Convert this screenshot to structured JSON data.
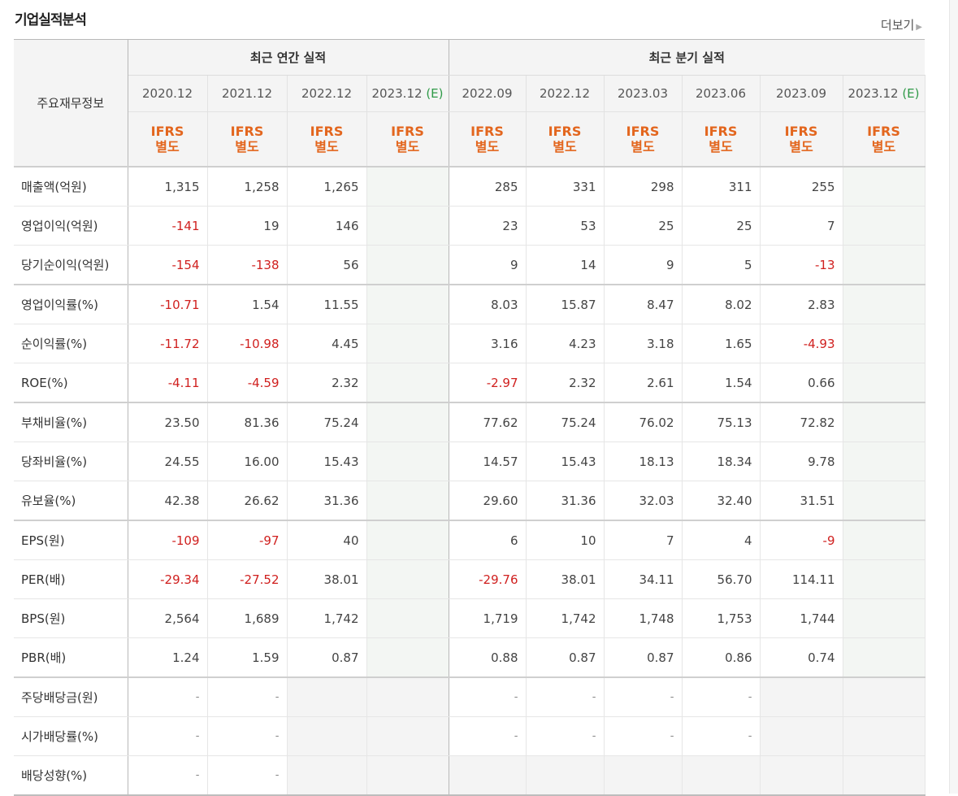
{
  "header": {
    "title": "기업실적분석",
    "more_label": "더보기"
  },
  "table": {
    "label_header": "주요재무정보",
    "group_annual": "최근 연간 실적",
    "group_quarter": "최근 분기 실적",
    "periods": [
      "2020.12",
      "2021.12",
      "2022.12",
      "2023.12",
      "2022.09",
      "2022.12",
      "2023.03",
      "2023.06",
      "2023.09",
      "2023.12"
    ],
    "estimate_mark": "(E)",
    "basis_top": "IFRS",
    "basis_bottom": "별도",
    "rows": [
      {
        "label": "매출액(억원)",
        "values": [
          "1,315",
          "1,258",
          "1,265",
          "",
          "285",
          "331",
          "298",
          "311",
          "255",
          ""
        ]
      },
      {
        "label": "영업이익(억원)",
        "values": [
          "-141",
          "19",
          "146",
          "",
          "23",
          "53",
          "25",
          "25",
          "7",
          ""
        ]
      },
      {
        "label": "당기순이익(억원)",
        "values": [
          "-154",
          "-138",
          "56",
          "",
          "9",
          "14",
          "9",
          "5",
          "-13",
          ""
        ]
      },
      {
        "label": "영업이익률(%)",
        "values": [
          "-10.71",
          "1.54",
          "11.55",
          "",
          "8.03",
          "15.87",
          "8.47",
          "8.02",
          "2.83",
          ""
        ]
      },
      {
        "label": "순이익률(%)",
        "values": [
          "-11.72",
          "-10.98",
          "4.45",
          "",
          "3.16",
          "4.23",
          "3.18",
          "1.65",
          "-4.93",
          ""
        ]
      },
      {
        "label": "ROE(%)",
        "values": [
          "-4.11",
          "-4.59",
          "2.32",
          "",
          "-2.97",
          "2.32",
          "2.61",
          "1.54",
          "0.66",
          ""
        ]
      },
      {
        "label": "부채비율(%)",
        "values": [
          "23.50",
          "81.36",
          "75.24",
          "",
          "77.62",
          "75.24",
          "76.02",
          "75.13",
          "72.82",
          ""
        ]
      },
      {
        "label": "당좌비율(%)",
        "values": [
          "24.55",
          "16.00",
          "15.43",
          "",
          "14.57",
          "15.43",
          "18.13",
          "18.34",
          "9.78",
          ""
        ]
      },
      {
        "label": "유보율(%)",
        "values": [
          "42.38",
          "26.62",
          "31.36",
          "",
          "29.60",
          "31.36",
          "32.03",
          "32.40",
          "31.51",
          ""
        ]
      },
      {
        "label": "EPS(원)",
        "values": [
          "-109",
          "-97",
          "40",
          "",
          "6",
          "10",
          "7",
          "4",
          "-9",
          ""
        ]
      },
      {
        "label": "PER(배)",
        "values": [
          "-29.34",
          "-27.52",
          "38.01",
          "",
          "-29.76",
          "38.01",
          "34.11",
          "56.70",
          "114.11",
          ""
        ]
      },
      {
        "label": "BPS(원)",
        "values": [
          "2,564",
          "1,689",
          "1,742",
          "",
          "1,719",
          "1,742",
          "1,748",
          "1,753",
          "1,744",
          ""
        ]
      },
      {
        "label": "PBR(배)",
        "values": [
          "1.24",
          "1.59",
          "0.87",
          "",
          "0.88",
          "0.87",
          "0.87",
          "0.86",
          "0.74",
          ""
        ]
      },
      {
        "label": "주당배당금(원)",
        "values": [
          "-",
          "-",
          "",
          "",
          "-",
          "-",
          "-",
          "-",
          "",
          ""
        ]
      },
      {
        "label": "시가배당률(%)",
        "values": [
          "-",
          "-",
          "",
          "",
          "-",
          "-",
          "-",
          "-",
          "",
          ""
        ]
      },
      {
        "label": "배당성향(%)",
        "values": [
          "-",
          "-",
          "",
          "",
          "",
          "",
          "",
          "",
          "",
          ""
        ]
      }
    ],
    "colors": {
      "negative": "#d0201f",
      "basis": "#e3661e",
      "estimate": "#2f9a48"
    }
  }
}
